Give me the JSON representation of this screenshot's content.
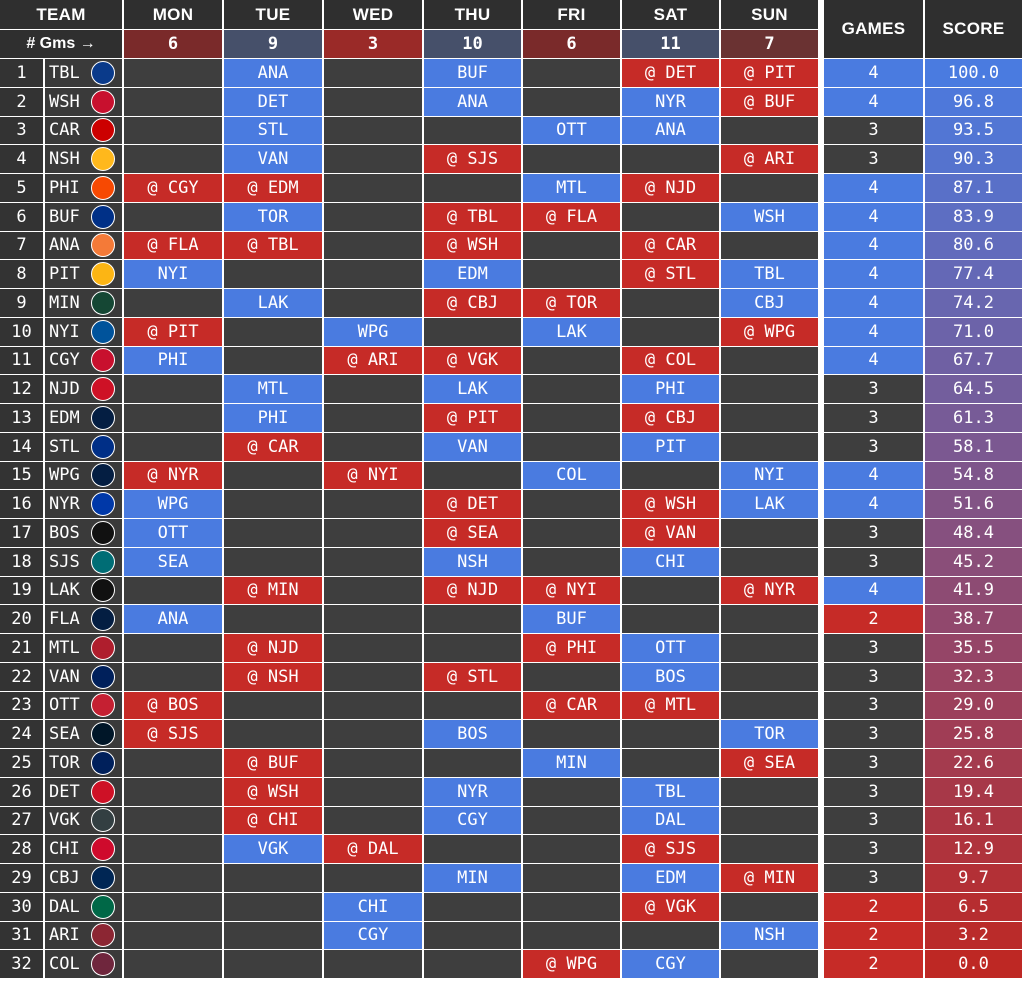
{
  "header": {
    "team": "TEAM",
    "days": [
      "MON",
      "TUE",
      "WED",
      "THU",
      "FRI",
      "SAT",
      "SUN"
    ],
    "games": "GAMES",
    "score": "SCORE",
    "gms_label": "# Gms →",
    "gms_counts": [
      "6",
      "9",
      "3",
      "10",
      "6",
      "11",
      "7"
    ]
  },
  "colors": {
    "home": "#4a7be0",
    "away": "#c62b27",
    "empty": "#3e3e3e",
    "header": "#2f2f2f"
  },
  "rows": [
    {
      "rank": "1",
      "team": "TBL",
      "logo_color": "#0a3a8a",
      "mon": "",
      "tue": "ANA",
      "wed": "",
      "thu": "BUF",
      "fri": "",
      "sat": "@ DET",
      "sun": "@ PIT",
      "games": "4",
      "score": "100.0"
    },
    {
      "rank": "2",
      "team": "WSH",
      "logo_color": "#c8102e",
      "mon": "",
      "tue": "DET",
      "wed": "",
      "thu": "ANA",
      "fri": "",
      "sat": "NYR",
      "sun": "@ BUF",
      "games": "4",
      "score": "96.8"
    },
    {
      "rank": "3",
      "team": "CAR",
      "logo_color": "#cc0000",
      "mon": "",
      "tue": "STL",
      "wed": "",
      "thu": "",
      "fri": "OTT",
      "sat": "ANA",
      "sun": "",
      "games": "3",
      "score": "93.5"
    },
    {
      "rank": "4",
      "team": "NSH",
      "logo_color": "#ffb81c",
      "mon": "",
      "tue": "VAN",
      "wed": "",
      "thu": "@ SJS",
      "fri": "",
      "sat": "",
      "sun": "@ ARI",
      "games": "3",
      "score": "90.3"
    },
    {
      "rank": "5",
      "team": "PHI",
      "logo_color": "#f74902",
      "mon": "@ CGY",
      "tue": "@ EDM",
      "wed": "",
      "thu": "",
      "fri": "MTL",
      "sat": "@ NJD",
      "sun": "",
      "games": "4",
      "score": "87.1"
    },
    {
      "rank": "6",
      "team": "BUF",
      "logo_color": "#003087",
      "mon": "",
      "tue": "TOR",
      "wed": "",
      "thu": "@ TBL",
      "fri": "@ FLA",
      "sat": "",
      "sun": "WSH",
      "games": "4",
      "score": "83.9"
    },
    {
      "rank": "7",
      "team": "ANA",
      "logo_color": "#f47a38",
      "mon": "@ FLA",
      "tue": "@ TBL",
      "wed": "",
      "thu": "@ WSH",
      "fri": "",
      "sat": "@ CAR",
      "sun": "",
      "games": "4",
      "score": "80.6"
    },
    {
      "rank": "8",
      "team": "PIT",
      "logo_color": "#fcb514",
      "mon": "NYI",
      "tue": "",
      "wed": "",
      "thu": "EDM",
      "fri": "",
      "sat": "@ STL",
      "sun": "TBL",
      "games": "4",
      "score": "77.4"
    },
    {
      "rank": "9",
      "team": "MIN",
      "logo_color": "#154734",
      "mon": "",
      "tue": "LAK",
      "wed": "",
      "thu": "@ CBJ",
      "fri": "@ TOR",
      "sat": "",
      "sun": "CBJ",
      "games": "4",
      "score": "74.2"
    },
    {
      "rank": "10",
      "team": "NYI",
      "logo_color": "#00539b",
      "mon": "@ PIT",
      "tue": "",
      "wed": "WPG",
      "thu": "",
      "fri": "LAK",
      "sat": "",
      "sun": "@ WPG",
      "games": "4",
      "score": "71.0"
    },
    {
      "rank": "11",
      "team": "CGY",
      "logo_color": "#c8102e",
      "mon": "PHI",
      "tue": "",
      "wed": "@ ARI",
      "thu": "@ VGK",
      "fri": "",
      "sat": "@ COL",
      "sun": "",
      "games": "4",
      "score": "67.7"
    },
    {
      "rank": "12",
      "team": "NJD",
      "logo_color": "#ce1126",
      "mon": "",
      "tue": "MTL",
      "wed": "",
      "thu": "LAK",
      "fri": "",
      "sat": "PHI",
      "sun": "",
      "games": "3",
      "score": "64.5"
    },
    {
      "rank": "13",
      "team": "EDM",
      "logo_color": "#041e42",
      "mon": "",
      "tue": "PHI",
      "wed": "",
      "thu": "@ PIT",
      "fri": "",
      "sat": "@ CBJ",
      "sun": "",
      "games": "3",
      "score": "61.3"
    },
    {
      "rank": "14",
      "team": "STL",
      "logo_color": "#002f87",
      "mon": "",
      "tue": "@ CAR",
      "wed": "",
      "thu": "VAN",
      "fri": "",
      "sat": "PIT",
      "sun": "",
      "games": "3",
      "score": "58.1"
    },
    {
      "rank": "15",
      "team": "WPG",
      "logo_color": "#041e42",
      "mon": "@ NYR",
      "tue": "",
      "wed": "@ NYI",
      "thu": "",
      "fri": "COL",
      "sat": "",
      "sun": "NYI",
      "games": "4",
      "score": "54.8"
    },
    {
      "rank": "16",
      "team": "NYR",
      "logo_color": "#0038a8",
      "mon": "WPG",
      "tue": "",
      "wed": "",
      "thu": "@ DET",
      "fri": "",
      "sat": "@ WSH",
      "sun": "LAK",
      "games": "4",
      "score": "51.6"
    },
    {
      "rank": "17",
      "team": "BOS",
      "logo_color": "#111111",
      "mon": "OTT",
      "tue": "",
      "wed": "",
      "thu": "@ SEA",
      "fri": "",
      "sat": "@ VAN",
      "sun": "",
      "games": "3",
      "score": "48.4"
    },
    {
      "rank": "18",
      "team": "SJS",
      "logo_color": "#006d75",
      "mon": "SEA",
      "tue": "",
      "wed": "",
      "thu": "NSH",
      "fri": "",
      "sat": "CHI",
      "sun": "",
      "games": "3",
      "score": "45.2"
    },
    {
      "rank": "19",
      "team": "LAK",
      "logo_color": "#111111",
      "mon": "",
      "tue": "@ MIN",
      "wed": "",
      "thu": "@ NJD",
      "fri": "@ NYI",
      "sat": "",
      "sun": "@ NYR",
      "games": "4",
      "score": "41.9"
    },
    {
      "rank": "20",
      "team": "FLA",
      "logo_color": "#041e42",
      "mon": "ANA",
      "tue": "",
      "wed": "",
      "thu": "",
      "fri": "BUF",
      "sat": "",
      "sun": "",
      "games": "2",
      "score": "38.7"
    },
    {
      "rank": "21",
      "team": "MTL",
      "logo_color": "#af1e2d",
      "mon": "",
      "tue": "@ NJD",
      "wed": "",
      "thu": "",
      "fri": "@ PHI",
      "sat": "OTT",
      "sun": "",
      "games": "3",
      "score": "35.5"
    },
    {
      "rank": "22",
      "team": "VAN",
      "logo_color": "#00205b",
      "mon": "",
      "tue": "@ NSH",
      "wed": "",
      "thu": "@ STL",
      "fri": "",
      "sat": "BOS",
      "sun": "",
      "games": "3",
      "score": "32.3"
    },
    {
      "rank": "23",
      "team": "OTT",
      "logo_color": "#c52032",
      "mon": "@ BOS",
      "tue": "",
      "wed": "",
      "thu": "",
      "fri": "@ CAR",
      "sat": "@ MTL",
      "sun": "",
      "games": "3",
      "score": "29.0"
    },
    {
      "rank": "24",
      "team": "SEA",
      "logo_color": "#001628",
      "mon": "@ SJS",
      "tue": "",
      "wed": "",
      "thu": "BOS",
      "fri": "",
      "sat": "",
      "sun": "TOR",
      "games": "3",
      "score": "25.8"
    },
    {
      "rank": "25",
      "team": "TOR",
      "logo_color": "#00205b",
      "mon": "",
      "tue": "@ BUF",
      "wed": "",
      "thu": "",
      "fri": "MIN",
      "sat": "",
      "sun": "@ SEA",
      "games": "3",
      "score": "22.6"
    },
    {
      "rank": "26",
      "team": "DET",
      "logo_color": "#ce1126",
      "mon": "",
      "tue": "@ WSH",
      "wed": "",
      "thu": "NYR",
      "fri": "",
      "sat": "TBL",
      "sun": "",
      "games": "3",
      "score": "19.4"
    },
    {
      "rank": "27",
      "team": "VGK",
      "logo_color": "#333f42",
      "mon": "",
      "tue": "@ CHI",
      "wed": "",
      "thu": "CGY",
      "fri": "",
      "sat": "DAL",
      "sun": "",
      "games": "3",
      "score": "16.1"
    },
    {
      "rank": "28",
      "team": "CHI",
      "logo_color": "#cf0a2c",
      "mon": "",
      "tue": "VGK",
      "wed": "@ DAL",
      "thu": "",
      "fri": "",
      "sat": "@ SJS",
      "sun": "",
      "games": "3",
      "score": "12.9"
    },
    {
      "rank": "29",
      "team": "CBJ",
      "logo_color": "#002654",
      "mon": "",
      "tue": "",
      "wed": "",
      "thu": "MIN",
      "fri": "",
      "sat": "EDM",
      "sun": "@ MIN",
      "games": "3",
      "score": "9.7"
    },
    {
      "rank": "30",
      "team": "DAL",
      "logo_color": "#006847",
      "mon": "",
      "tue": "",
      "wed": "CHI",
      "thu": "",
      "fri": "",
      "sat": "@ VGK",
      "sun": "",
      "games": "2",
      "score": "6.5"
    },
    {
      "rank": "31",
      "team": "ARI",
      "logo_color": "#8c2633",
      "mon": "",
      "tue": "",
      "wed": "CGY",
      "thu": "",
      "fri": "",
      "sat": "",
      "sun": "NSH",
      "games": "2",
      "score": "3.2"
    },
    {
      "rank": "32",
      "team": "COL",
      "logo_color": "#6f263d",
      "mon": "",
      "tue": "",
      "wed": "",
      "thu": "",
      "fri": "@ WPG",
      "sat": "CGY",
      "sun": "",
      "games": "2",
      "score": "0.0"
    }
  ]
}
